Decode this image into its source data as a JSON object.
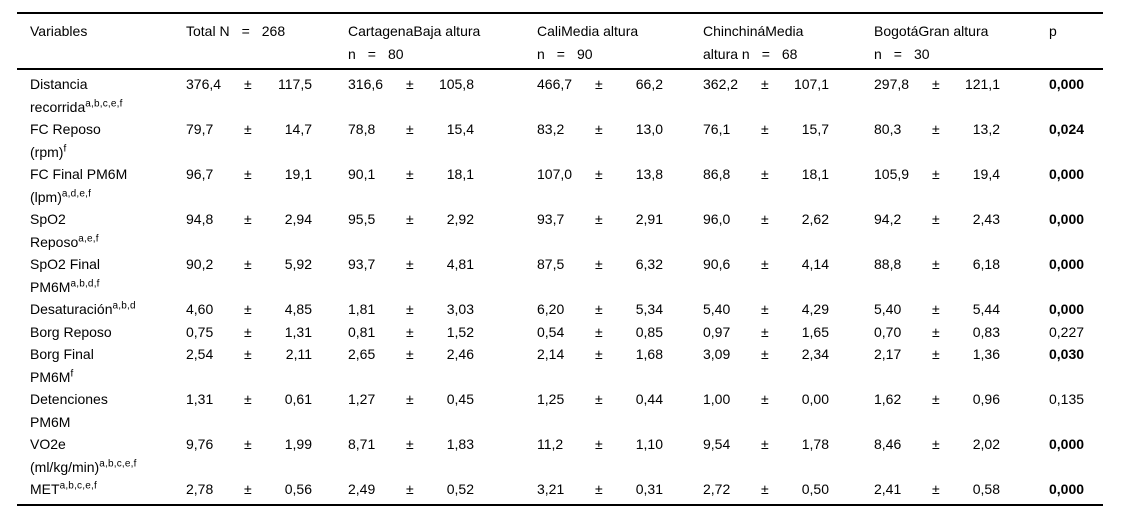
{
  "pm": "±",
  "header": {
    "variables": "Variables",
    "p": "p",
    "groups": [
      {
        "line1": "Total N",
        "eq": "=",
        "n": "268"
      },
      {
        "line1": "CartagenaBaja altura",
        "line2_label": "n",
        "eq": "=",
        "n": "80"
      },
      {
        "line1": "CaliMedia altura",
        "line2_label": "n",
        "eq": "=",
        "n": "90"
      },
      {
        "line1": "ChinchináMedia",
        "line2_label": "altura n",
        "eq": "=",
        "n": "68"
      },
      {
        "line1": "BogotáGran altura",
        "line2_label": "n",
        "eq": "=",
        "n": "30"
      }
    ]
  },
  "rows": [
    {
      "l1": "Distancia",
      "sup1": "",
      "l2": "recorrida",
      "sup2": "a,b,c,e,f",
      "total": {
        "m": "376,4",
        "s": "117,5"
      },
      "cartagena": {
        "m": "316,6",
        "s": "105,8"
      },
      "cali": {
        "m": "466,7",
        "s": "66,2"
      },
      "chinchina": {
        "m": "362,2",
        "s": "107,1"
      },
      "bogota": {
        "m": "297,8",
        "s": "121,1"
      },
      "p": "0,000",
      "p_bold": true
    },
    {
      "l1": "FC Reposo",
      "sup1": "",
      "l2": "(rpm)",
      "sup2": "f",
      "total": {
        "m": "79,7",
        "s": "14,7"
      },
      "cartagena": {
        "m": "78,8",
        "s": "15,4"
      },
      "cali": {
        "m": "83,2",
        "s": "13,0"
      },
      "chinchina": {
        "m": "76,1",
        "s": "15,7"
      },
      "bogota": {
        "m": "80,3",
        "s": "13,2"
      },
      "p": "0,024",
      "p_bold": true
    },
    {
      "l1": "FC Final PM6M",
      "sup1": "",
      "l2": "(lpm)",
      "sup2": "a,d,e,f",
      "total": {
        "m": "96,7",
        "s": "19,1"
      },
      "cartagena": {
        "m": "90,1",
        "s": "18,1"
      },
      "cali": {
        "m": "107,0",
        "s": "13,8"
      },
      "chinchina": {
        "m": "86,8",
        "s": "18,1"
      },
      "bogota": {
        "m": "105,9",
        "s": "19,4"
      },
      "p": "0,000",
      "p_bold": true
    },
    {
      "l1": "SpO2",
      "sup1": "",
      "l2": "Reposo",
      "sup2": "a,e,f",
      "total": {
        "m": "94,8",
        "s": "2,94"
      },
      "cartagena": {
        "m": "95,5",
        "s": "2,92"
      },
      "cali": {
        "m": "93,7",
        "s": "2,91"
      },
      "chinchina": {
        "m": "96,0",
        "s": "2,62"
      },
      "bogota": {
        "m": "94,2",
        "s": "2,43"
      },
      "p": "0,000",
      "p_bold": true
    },
    {
      "l1": "SpO2 Final",
      "sup1": "",
      "l2": "PM6M",
      "sup2": "a,b,d,f",
      "total": {
        "m": "90,2",
        "s": "5,92"
      },
      "cartagena": {
        "m": "93,7",
        "s": "4,81"
      },
      "cali": {
        "m": "87,5",
        "s": "6,32"
      },
      "chinchina": {
        "m": "90,6",
        "s": "4,14"
      },
      "bogota": {
        "m": "88,8",
        "s": "6,18"
      },
      "p": "0,000",
      "p_bold": true
    },
    {
      "l1": "Desaturación",
      "sup1": "a,b,d",
      "l2": "",
      "sup2": "",
      "total": {
        "m": "4,60",
        "s": "4,85"
      },
      "cartagena": {
        "m": "1,81",
        "s": "3,03"
      },
      "cali": {
        "m": "6,20",
        "s": "5,34"
      },
      "chinchina": {
        "m": "5,40",
        "s": "4,29"
      },
      "bogota": {
        "m": "5,40",
        "s": "5,44"
      },
      "p": "0,000",
      "p_bold": true
    },
    {
      "l1": "Borg Reposo",
      "sup1": "",
      "l2": "",
      "sup2": "",
      "total": {
        "m": "0,75",
        "s": "1,31"
      },
      "cartagena": {
        "m": "0,81",
        "s": "1,52"
      },
      "cali": {
        "m": "0,54",
        "s": "0,85"
      },
      "chinchina": {
        "m": "0,97",
        "s": "1,65"
      },
      "bogota": {
        "m": "0,70",
        "s": "0,83"
      },
      "p": "0,227",
      "p_bold": false
    },
    {
      "l1": "Borg Final",
      "sup1": "",
      "l2": "PM6M",
      "sup2": "f",
      "total": {
        "m": "2,54",
        "s": "2,11"
      },
      "cartagena": {
        "m": "2,65",
        "s": "2,46"
      },
      "cali": {
        "m": "2,14",
        "s": "1,68"
      },
      "chinchina": {
        "m": "3,09",
        "s": "2,34"
      },
      "bogota": {
        "m": "2,17",
        "s": "1,36"
      },
      "p": "0,030",
      "p_bold": true
    },
    {
      "l1": "Detenciones",
      "sup1": "",
      "l2": "PM6M",
      "sup2": "",
      "total": {
        "m": "1,31",
        "s": "0,61"
      },
      "cartagena": {
        "m": "1,27",
        "s": "0,45"
      },
      "cali": {
        "m": "1,25",
        "s": "0,44"
      },
      "chinchina": {
        "m": "1,00",
        "s": "0,00"
      },
      "bogota": {
        "m": "1,62",
        "s": "0,96"
      },
      "p": "0,135",
      "p_bold": false
    },
    {
      "l1": "VO2e",
      "sup1": "",
      "l2": "(ml/kg/min)",
      "sup2": "a,b,c,e,f",
      "total": {
        "m": "9,76",
        "s": "1,99"
      },
      "cartagena": {
        "m": "8,71",
        "s": "1,83"
      },
      "cali": {
        "m": "11,2",
        "s": "1,10"
      },
      "chinchina": {
        "m": "9,54",
        "s": "1,78"
      },
      "bogota": {
        "m": "8,46",
        "s": "2,02"
      },
      "p": "0,000",
      "p_bold": true
    },
    {
      "l1": "MET",
      "sup1": "a,b,c,e,f",
      "l2": "",
      "sup2": "",
      "total": {
        "m": "2,78",
        "s": "0,56"
      },
      "cartagena": {
        "m": "2,49",
        "s": "0,52"
      },
      "cali": {
        "m": "3,21",
        "s": "0,31"
      },
      "chinchina": {
        "m": "2,72",
        "s": "0,50"
      },
      "bogota": {
        "m": "2,41",
        "s": "0,58"
      },
      "p": "0,000",
      "p_bold": true
    }
  ]
}
